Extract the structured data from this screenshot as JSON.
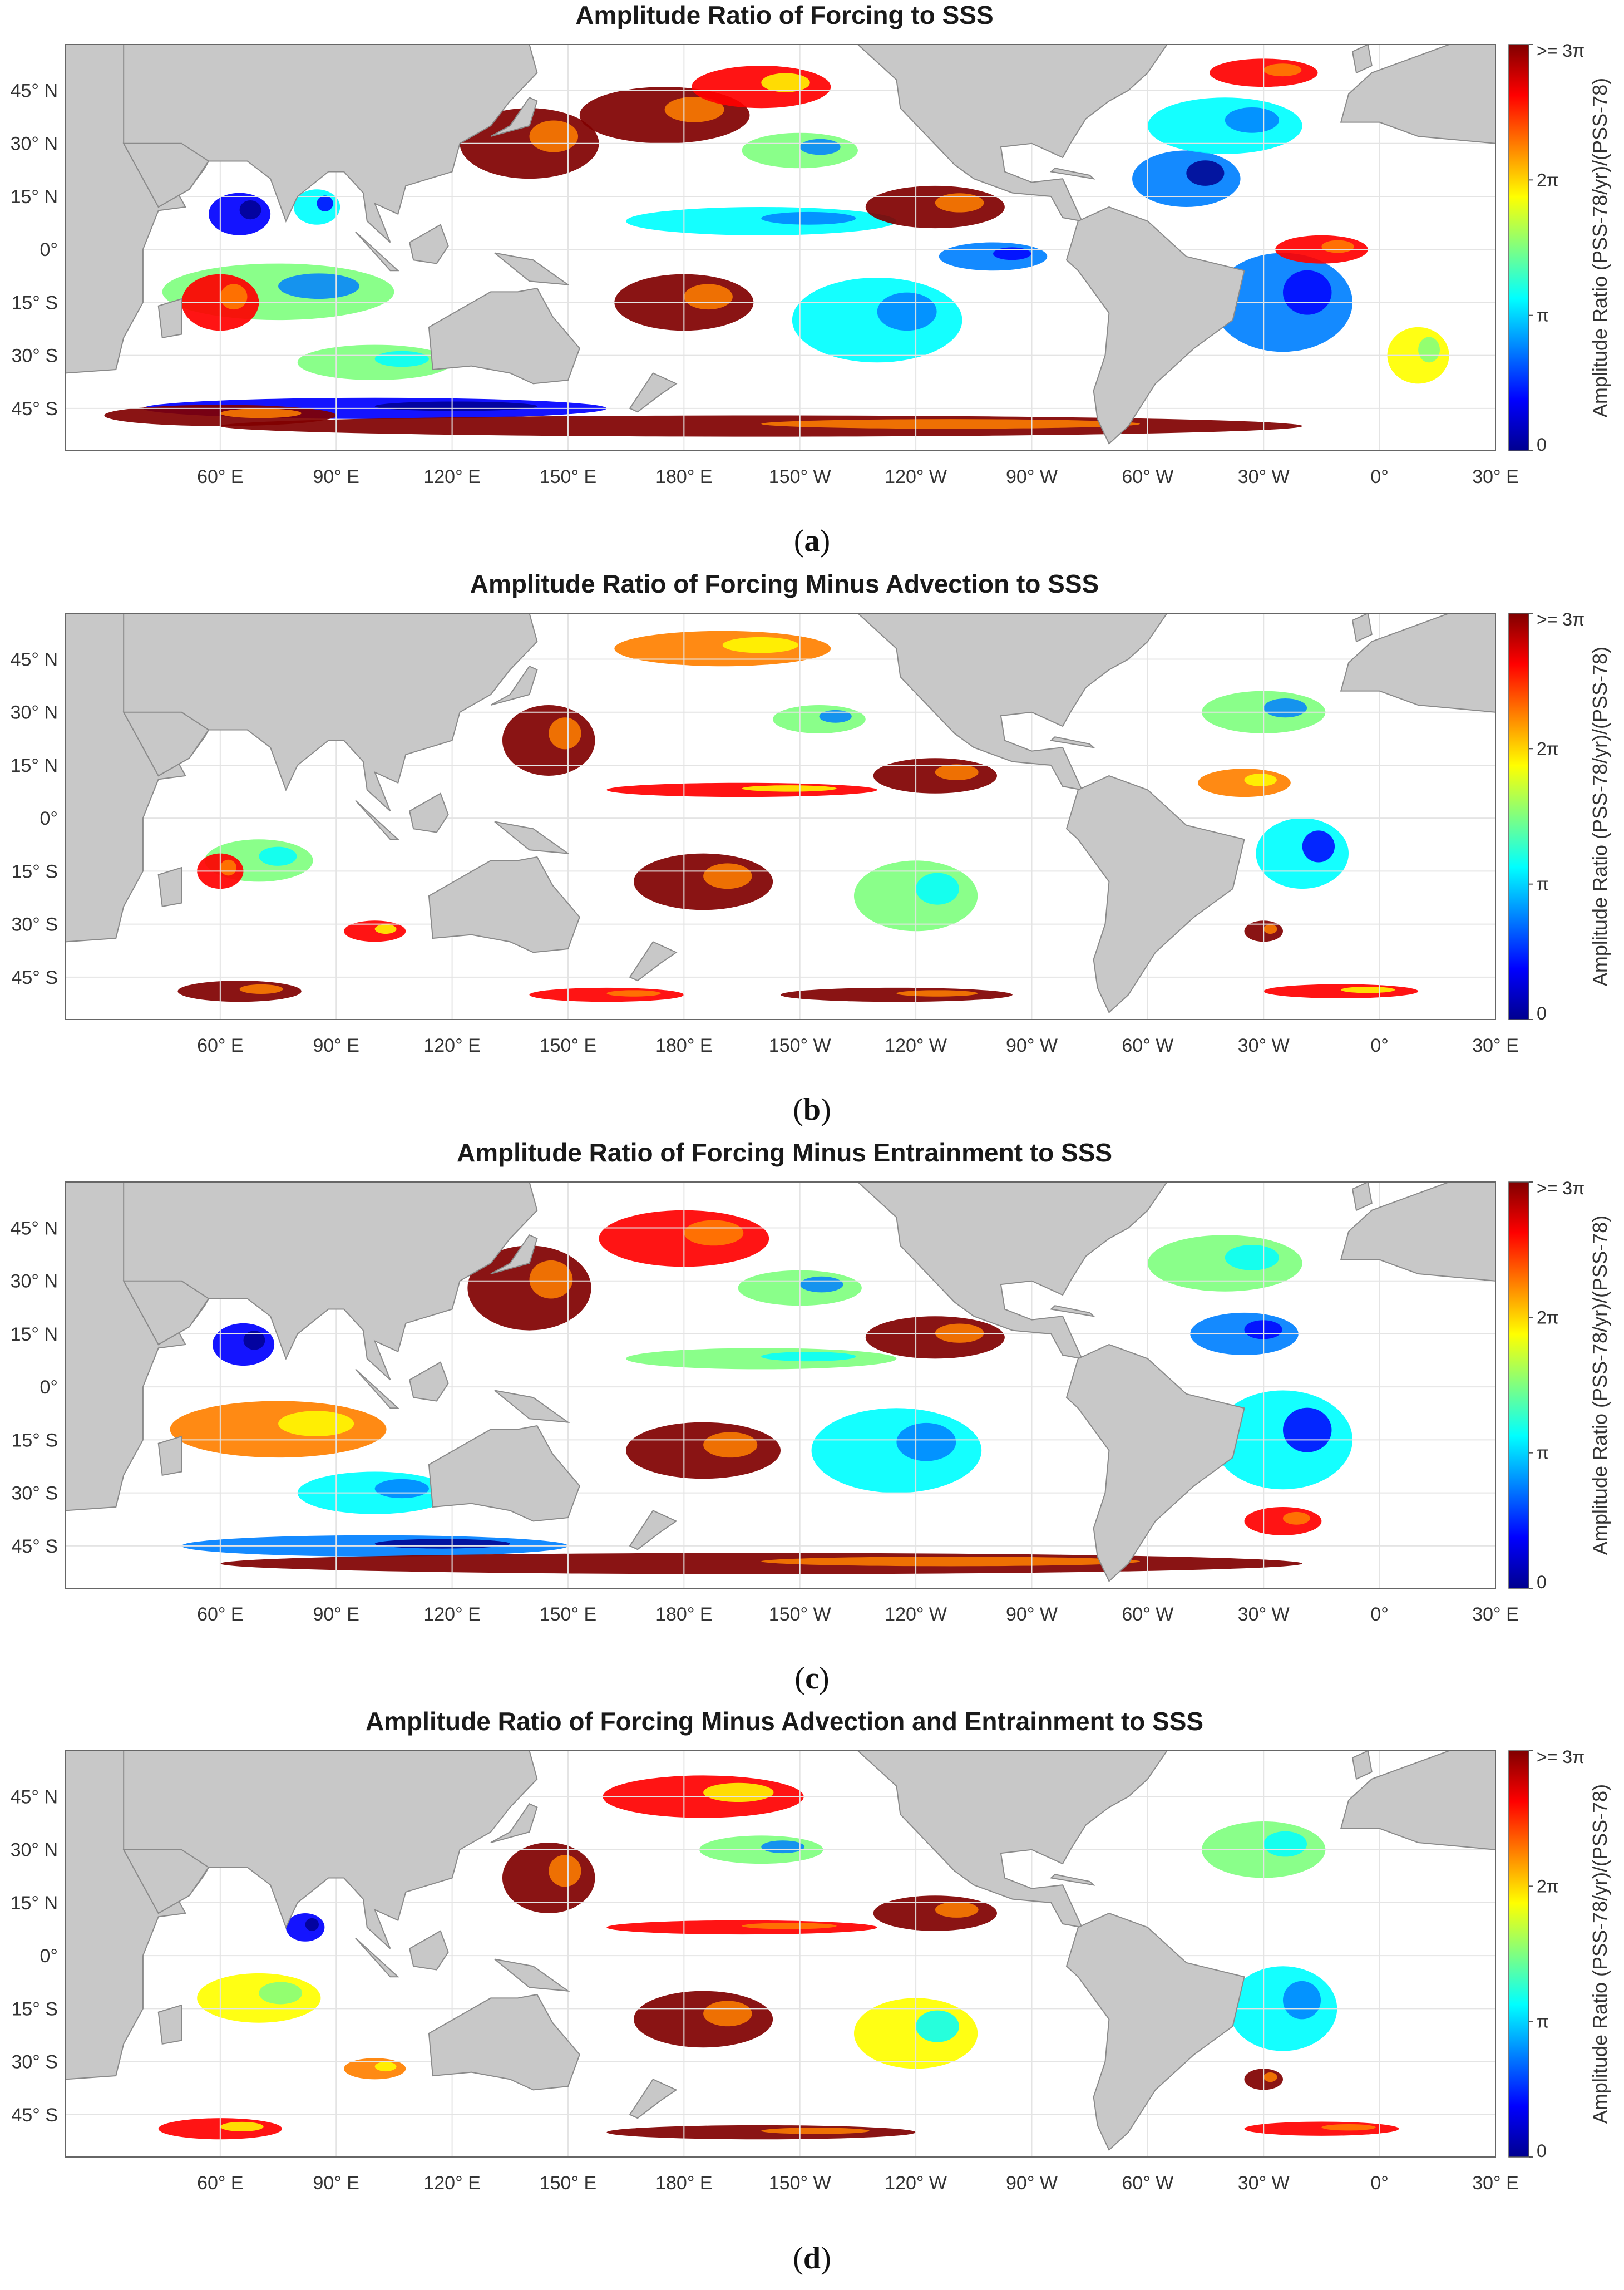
{
  "colors": {
    "land": "#c8c8c8",
    "ocean": "#ffffff",
    "coast": "#8a8a8a",
    "colormap": [
      "#00008f",
      "#0000ff",
      "#0080ff",
      "#00ffff",
      "#80ff80",
      "#ffff00",
      "#ff8000",
      "#ff0000",
      "#800000"
    ]
  },
  "axes": {
    "lat_ticks": [
      "45° N",
      "30° N",
      "15° N",
      "0°",
      "15° S",
      "30° S",
      "45° S"
    ],
    "lon_ticks": [
      "60° E",
      "90° E",
      "120° E",
      "150° E",
      "180° E",
      "150° W",
      "120° W",
      "90° W",
      "60° W",
      "30° W",
      "0°",
      "30° E"
    ]
  },
  "colorbar": {
    "title": "Amplitude Ratio (PSS-78/yr)/(PSS-78)",
    "ticks": [
      ">= 3π",
      "2π",
      "π",
      "0"
    ],
    "tick_values": [
      3,
      2,
      1,
      0
    ],
    "range": [
      0,
      3
    ]
  },
  "panels": [
    {
      "title": "Amplitude Ratio of Forcing to SSS",
      "label": "a",
      "patches": [
        {
          "lon": 140,
          "lat": 30,
          "v": 2.95,
          "rx": 18,
          "ry": 10
        },
        {
          "lon": 175,
          "lat": 38,
          "v": 2.9,
          "rx": 22,
          "ry": 8
        },
        {
          "lon": 200,
          "lat": 46,
          "v": 2.6,
          "rx": 18,
          "ry": 6
        },
        {
          "lon": 210,
          "lat": 28,
          "v": 1.4,
          "rx": 15,
          "ry": 5
        },
        {
          "lon": 200,
          "lat": 8,
          "v": 1.2,
          "rx": 35,
          "ry": 4
        },
        {
          "lon": 245,
          "lat": 12,
          "v": 2.95,
          "rx": 18,
          "ry": 6
        },
        {
          "lon": 180,
          "lat": -15,
          "v": 2.95,
          "rx": 18,
          "ry": 8
        },
        {
          "lon": 230,
          "lat": -20,
          "v": 1.3,
          "rx": 22,
          "ry": 12
        },
        {
          "lon": 260,
          "lat": -2,
          "v": 0.9,
          "rx": 14,
          "ry": 4
        },
        {
          "lon": 65,
          "lat": 10,
          "v": 0.3,
          "rx": 8,
          "ry": 6
        },
        {
          "lon": 85,
          "lat": 12,
          "v": 1.0,
          "rx": 6,
          "ry": 5
        },
        {
          "lon": 75,
          "lat": -12,
          "v": 1.5,
          "rx": 30,
          "ry": 8
        },
        {
          "lon": 60,
          "lat": -15,
          "v": 2.8,
          "rx": 10,
          "ry": 8
        },
        {
          "lon": 100,
          "lat": -32,
          "v": 1.6,
          "rx": 20,
          "ry": 5
        },
        {
          "lon": 310,
          "lat": 20,
          "v": 0.7,
          "rx": 14,
          "ry": 8
        },
        {
          "lon": 320,
          "lat": 35,
          "v": 1.3,
          "rx": 20,
          "ry": 8
        },
        {
          "lon": 330,
          "lat": 50,
          "v": 2.7,
          "rx": 14,
          "ry": 4
        },
        {
          "lon": 335,
          "lat": -15,
          "v": 0.9,
          "rx": 18,
          "ry": 14
        },
        {
          "lon": 345,
          "lat": 0,
          "v": 2.7,
          "rx": 12,
          "ry": 4
        },
        {
          "lon": 10,
          "lat": -30,
          "v": 2.0,
          "rx": 8,
          "ry": 8
        },
        {
          "lon": 100,
          "lat": -45,
          "v": 0.4,
          "rx": 60,
          "ry": 3
        },
        {
          "lon": 200,
          "lat": -50,
          "v": 2.95,
          "rx": 140,
          "ry": 3
        },
        {
          "lon": 60,
          "lat": -47,
          "v": 2.9,
          "rx": 30,
          "ry": 3
        }
      ]
    },
    {
      "title": "Amplitude Ratio of Forcing Minus Advection to SSS",
      "label": "b",
      "patches": [
        {
          "lon": 145,
          "lat": 22,
          "v": 2.95,
          "rx": 12,
          "ry": 10
        },
        {
          "lon": 190,
          "lat": 48,
          "v": 2.4,
          "rx": 28,
          "ry": 5
        },
        {
          "lon": 215,
          "lat": 28,
          "v": 1.5,
          "rx": 12,
          "ry": 4
        },
        {
          "lon": 195,
          "lat": 8,
          "v": 2.6,
          "rx": 35,
          "ry": 2
        },
        {
          "lon": 245,
          "lat": 12,
          "v": 2.95,
          "rx": 16,
          "ry": 5
        },
        {
          "lon": 185,
          "lat": -18,
          "v": 2.95,
          "rx": 18,
          "ry": 8
        },
        {
          "lon": 240,
          "lat": -22,
          "v": 1.6,
          "rx": 16,
          "ry": 10
        },
        {
          "lon": 70,
          "lat": -12,
          "v": 1.6,
          "rx": 14,
          "ry": 6
        },
        {
          "lon": 60,
          "lat": -15,
          "v": 2.8,
          "rx": 6,
          "ry": 5
        },
        {
          "lon": 100,
          "lat": -32,
          "v": 2.5,
          "rx": 8,
          "ry": 3
        },
        {
          "lon": 330,
          "lat": 30,
          "v": 1.5,
          "rx": 16,
          "ry": 6
        },
        {
          "lon": 325,
          "lat": 10,
          "v": 2.4,
          "rx": 12,
          "ry": 4
        },
        {
          "lon": 340,
          "lat": -10,
          "v": 1.0,
          "rx": 12,
          "ry": 10
        },
        {
          "lon": 330,
          "lat": -32,
          "v": 2.9,
          "rx": 5,
          "ry": 3
        },
        {
          "lon": 65,
          "lat": -49,
          "v": 2.95,
          "rx": 16,
          "ry": 3
        },
        {
          "lon": 235,
          "lat": -50,
          "v": 2.95,
          "rx": 30,
          "ry": 2
        },
        {
          "lon": 160,
          "lat": -50,
          "v": 2.7,
          "rx": 20,
          "ry": 2
        },
        {
          "lon": 350,
          "lat": -49,
          "v": 2.6,
          "rx": 20,
          "ry": 2
        }
      ]
    },
    {
      "title": "Amplitude Ratio of Forcing Minus Entrainment to SSS",
      "label": "c",
      "patches": [
        {
          "lon": 140,
          "lat": 28,
          "v": 2.95,
          "rx": 16,
          "ry": 12
        },
        {
          "lon": 180,
          "lat": 42,
          "v": 2.8,
          "rx": 22,
          "ry": 8
        },
        {
          "lon": 210,
          "lat": 28,
          "v": 1.4,
          "rx": 16,
          "ry": 5
        },
        {
          "lon": 200,
          "lat": 8,
          "v": 1.6,
          "rx": 35,
          "ry": 3
        },
        {
          "lon": 245,
          "lat": 14,
          "v": 2.95,
          "rx": 18,
          "ry": 6
        },
        {
          "lon": 185,
          "lat": -18,
          "v": 2.95,
          "rx": 20,
          "ry": 8
        },
        {
          "lon": 235,
          "lat": -18,
          "v": 1.2,
          "rx": 22,
          "ry": 12
        },
        {
          "lon": 66,
          "lat": 12,
          "v": 0.4,
          "rx": 8,
          "ry": 6
        },
        {
          "lon": 75,
          "lat": -12,
          "v": 2.3,
          "rx": 28,
          "ry": 8
        },
        {
          "lon": 100,
          "lat": -30,
          "v": 1.2,
          "rx": 20,
          "ry": 6
        },
        {
          "lon": 320,
          "lat": 35,
          "v": 1.6,
          "rx": 20,
          "ry": 8
        },
        {
          "lon": 325,
          "lat": 15,
          "v": 0.8,
          "rx": 14,
          "ry": 6
        },
        {
          "lon": 335,
          "lat": -15,
          "v": 1.0,
          "rx": 18,
          "ry": 14
        },
        {
          "lon": 100,
          "lat": -45,
          "v": 0.6,
          "rx": 50,
          "ry": 3
        },
        {
          "lon": 200,
          "lat": -50,
          "v": 2.95,
          "rx": 140,
          "ry": 3
        },
        {
          "lon": 335,
          "lat": -38,
          "v": 2.8,
          "rx": 10,
          "ry": 4
        }
      ]
    },
    {
      "title": "Amplitude Ratio of Forcing Minus Advection and Entrainment to SSS",
      "label": "d",
      "patches": [
        {
          "lon": 145,
          "lat": 22,
          "v": 2.95,
          "rx": 12,
          "ry": 10
        },
        {
          "lon": 185,
          "lat": 45,
          "v": 2.5,
          "rx": 26,
          "ry": 6
        },
        {
          "lon": 200,
          "lat": 30,
          "v": 1.5,
          "rx": 16,
          "ry": 4
        },
        {
          "lon": 195,
          "lat": 8,
          "v": 2.8,
          "rx": 35,
          "ry": 2
        },
        {
          "lon": 245,
          "lat": 12,
          "v": 2.95,
          "rx": 16,
          "ry": 5
        },
        {
          "lon": 185,
          "lat": -18,
          "v": 2.95,
          "rx": 18,
          "ry": 8
        },
        {
          "lon": 240,
          "lat": -22,
          "v": 1.8,
          "rx": 16,
          "ry": 10
        },
        {
          "lon": 70,
          "lat": -12,
          "v": 2.0,
          "rx": 16,
          "ry": 7
        },
        {
          "lon": 82,
          "lat": 8,
          "v": 0.5,
          "rx": 5,
          "ry": 4
        },
        {
          "lon": 100,
          "lat": -32,
          "v": 2.4,
          "rx": 8,
          "ry": 3
        },
        {
          "lon": 330,
          "lat": 30,
          "v": 1.6,
          "rx": 16,
          "ry": 8
        },
        {
          "lon": 335,
          "lat": -15,
          "v": 1.2,
          "rx": 14,
          "ry": 12
        },
        {
          "lon": 330,
          "lat": -35,
          "v": 2.9,
          "rx": 5,
          "ry": 3
        },
        {
          "lon": 60,
          "lat": -49,
          "v": 2.6,
          "rx": 16,
          "ry": 3
        },
        {
          "lon": 200,
          "lat": -50,
          "v": 2.95,
          "rx": 40,
          "ry": 2
        },
        {
          "lon": 345,
          "lat": -49,
          "v": 2.7,
          "rx": 20,
          "ry": 2
        }
      ]
    }
  ]
}
